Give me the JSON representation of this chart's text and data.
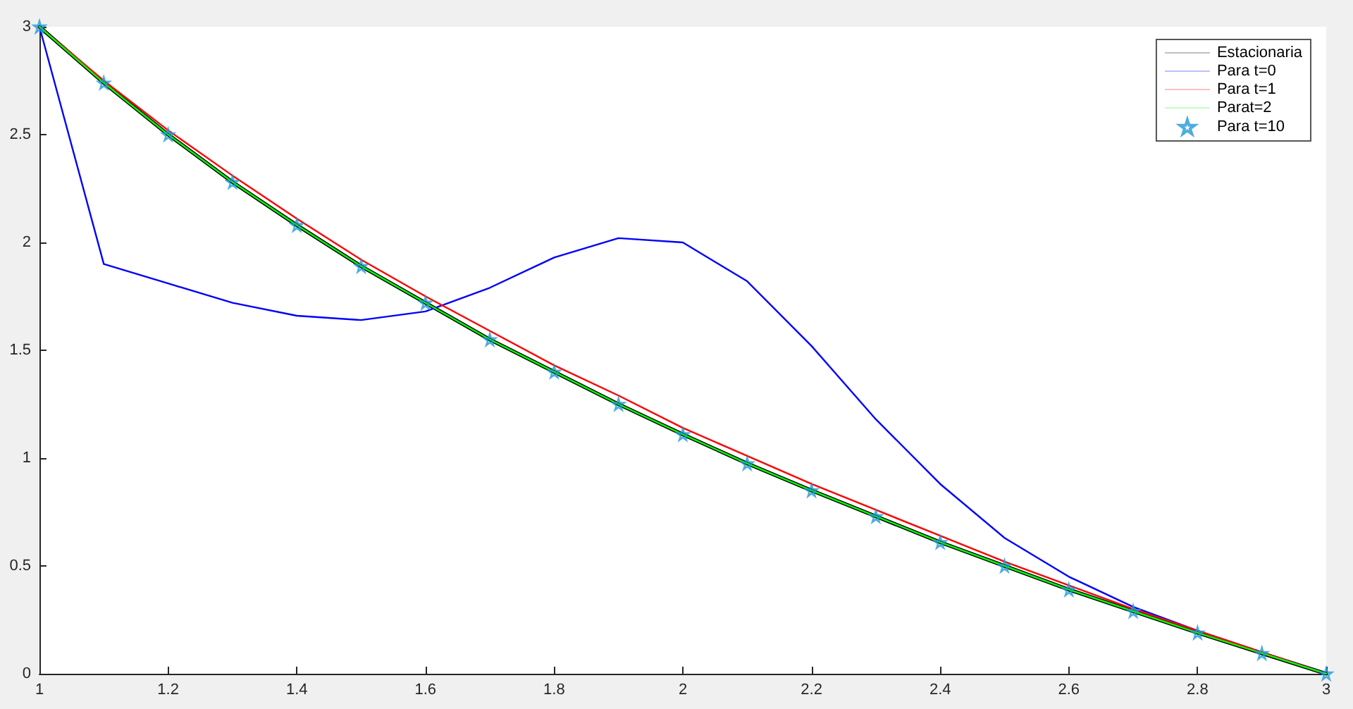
{
  "chart_data": {
    "type": "line",
    "x": [
      1,
      1.1,
      1.2,
      1.3,
      1.4,
      1.5,
      1.6,
      1.7,
      1.8,
      1.9,
      2,
      2.1,
      2.2,
      2.3,
      2.4,
      2.5,
      2.6,
      2.7,
      2.8,
      2.9,
      3
    ],
    "series": [
      {
        "name": "Estacionaria",
        "color": "#000000",
        "values": [
          3,
          2.74,
          2.5,
          2.28,
          2.08,
          1.89,
          1.72,
          1.55,
          1.4,
          1.25,
          1.11,
          0.975,
          0.85,
          0.73,
          0.61,
          0.5,
          0.39,
          0.29,
          0.19,
          0.095,
          0
        ]
      },
      {
        "name": "Para t=0",
        "color": "#0000ff",
        "values": [
          3,
          1.9,
          1.81,
          1.72,
          1.66,
          1.64,
          1.68,
          1.79,
          1.93,
          2.02,
          2,
          1.82,
          1.52,
          1.18,
          0.88,
          0.63,
          0.45,
          0.31,
          0.2,
          0.1,
          0
        ]
      },
      {
        "name": "Para t=1",
        "color": "#ff0000",
        "values": [
          3,
          2.75,
          2.52,
          2.31,
          2.11,
          1.92,
          1.75,
          1.59,
          1.43,
          1.29,
          1.14,
          1.01,
          0.88,
          0.76,
          0.64,
          0.52,
          0.41,
          0.3,
          0.2,
          0.1,
          0
        ]
      },
      {
        "name": "Parat=2",
        "color": "#00ff00",
        "values": [
          3,
          2.74,
          2.5,
          2.28,
          2.08,
          1.89,
          1.72,
          1.55,
          1.4,
          1.25,
          1.11,
          0.975,
          0.85,
          0.73,
          0.61,
          0.5,
          0.39,
          0.29,
          0.19,
          0.095,
          0
        ]
      },
      {
        "name": "Para t=10",
        "type": "scatter",
        "marker": "star",
        "color": "#1f9ad6",
        "values": [
          3,
          2.74,
          2.5,
          2.28,
          2.08,
          1.89,
          1.72,
          1.55,
          1.4,
          1.25,
          1.11,
          0.975,
          0.85,
          0.73,
          0.61,
          0.5,
          0.39,
          0.29,
          0.19,
          0.095,
          0
        ]
      }
    ],
    "xlim": [
      1,
      3
    ],
    "xticks": [
      1,
      1.2,
      1.4,
      1.6,
      1.8,
      2,
      2.2,
      2.4,
      2.6,
      2.8,
      3
    ],
    "ylim": [
      0,
      3
    ],
    "yticks": [
      0,
      0.5,
      1,
      1.5,
      2,
      2.5,
      3
    ],
    "grid": false,
    "legend": "top right"
  }
}
